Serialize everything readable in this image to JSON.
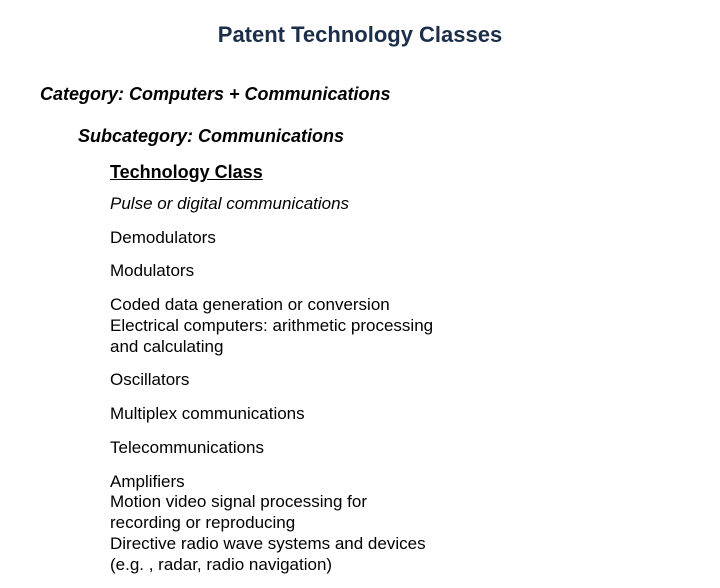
{
  "title": "Patent Technology Classes",
  "title_color": "#1b2e4a",
  "title_fontsize": 22,
  "category_label": "Category: Computers + Communications",
  "subcategory_label": "Subcategory: Communications",
  "tech_header": "Technology Class",
  "heading_fontsize": 18,
  "item_fontsize": 17,
  "background_color": "#ffffff",
  "text_color": "#000000",
  "items": [
    {
      "text": "Pulse or digital communications",
      "italic": true
    },
    {
      "text": "Demodulators",
      "italic": false
    },
    {
      "text": "Modulators",
      "italic": false
    },
    {
      "text": "Coded data generation or conversion Electrical computers: arithmetic processing and calculating",
      "italic": false
    },
    {
      "text": "Oscillators",
      "italic": false
    },
    {
      "text": "Multiplex communications",
      "italic": false
    },
    {
      "text": "Telecommunications",
      "italic": false
    },
    {
      "text": "Amplifiers\nMotion video signal processing for recording or reproducing\nDirective radio wave systems and devices (e.g. , radar, radio navigation)",
      "italic": false
    }
  ]
}
